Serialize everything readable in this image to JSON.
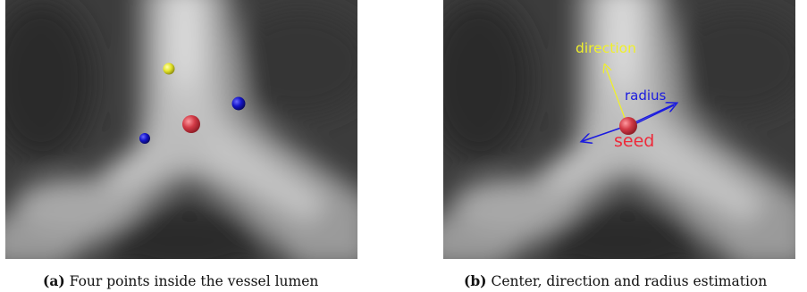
{
  "panels": [
    {
      "label": "(a)",
      "caption": "Four points inside the vessel lumen",
      "points": [
        {
          "color": "#e6e62a",
          "name": "yellow"
        },
        {
          "color": "#1414c8",
          "name": "blue"
        },
        {
          "color": "#1414c8",
          "name": "blue"
        },
        {
          "color": "#d23a46",
          "name": "red"
        }
      ]
    },
    {
      "label": "(b)",
      "caption": "Center, direction and radius estimation",
      "annotations": {
        "direction": "direction",
        "radius": "radius",
        "seed": "seed"
      }
    }
  ],
  "colors": {
    "direction": "#f0f02a",
    "radius": "#1a1ae0",
    "seed": "#ee2a3a"
  }
}
